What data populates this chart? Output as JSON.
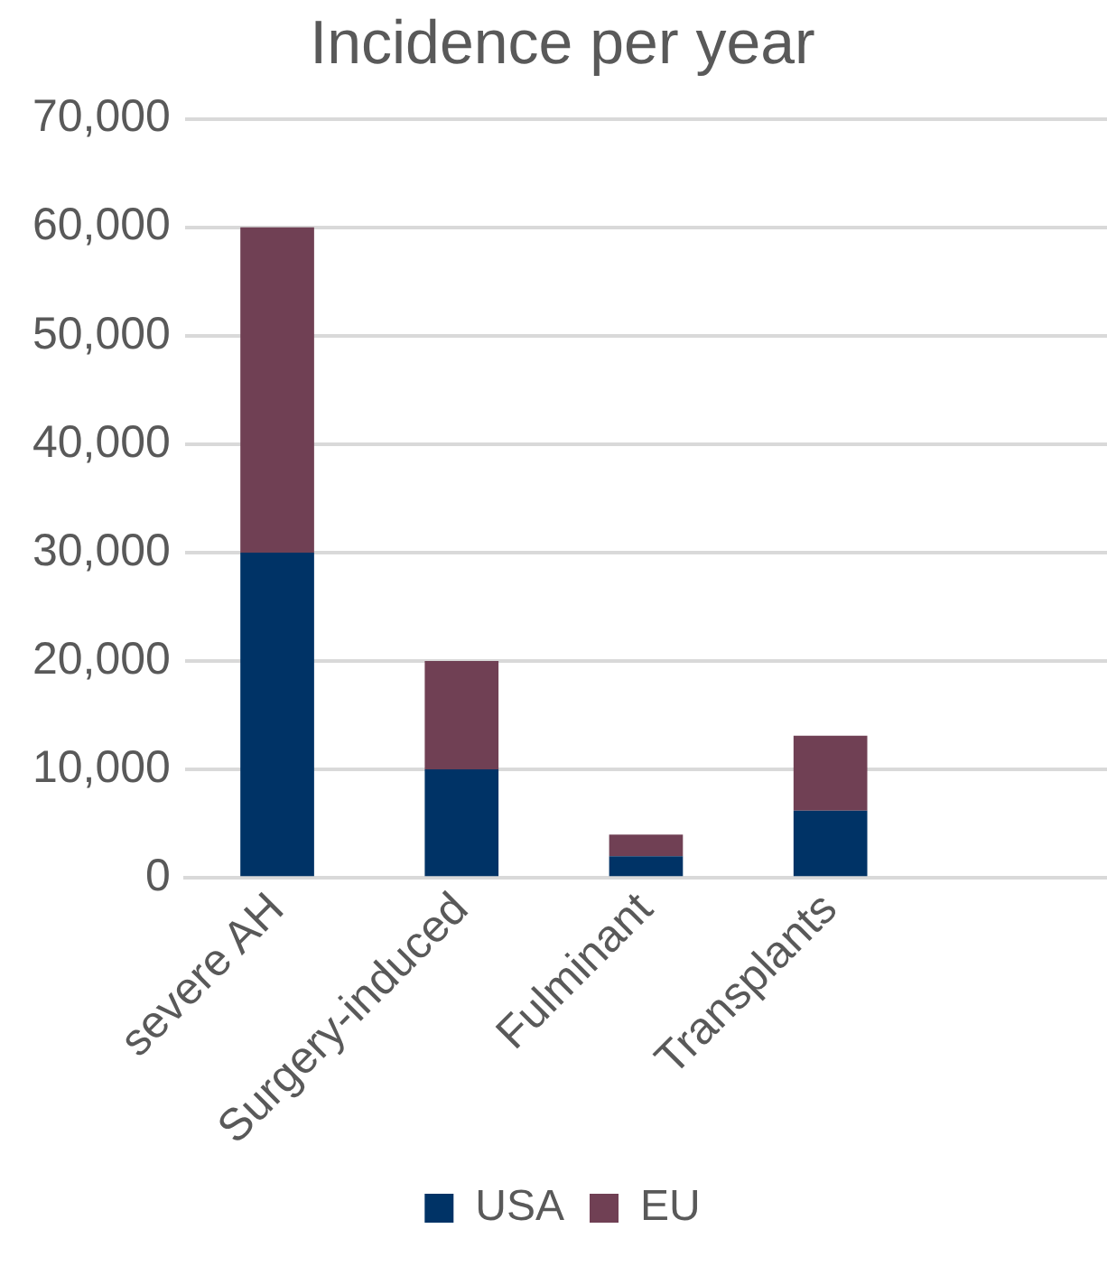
{
  "chart_data": {
    "type": "bar",
    "title": "Incidence per year",
    "categories": [
      "severe AH",
      "Surgery-induced",
      "Fulminant",
      "Transplants",
      null
    ],
    "stacked": true,
    "series": [
      {
        "name": "USA",
        "color": "#003366",
        "values": [
          30000,
          10000,
          2000,
          6200,
          null
        ]
      },
      {
        "name": "EU",
        "color": "#704054",
        "values": [
          30000,
          10000,
          2000,
          6900,
          null
        ]
      }
    ],
    "ylim": [
      0,
      70000
    ],
    "yticks": [
      0,
      {
        "value": 10000,
        "label": "10,000"
      },
      {
        "value": 20000,
        "label": "20,000"
      },
      {
        "value": 30000,
        "label": "30,000"
      },
      {
        "value": 40000,
        "label": "40,000"
      },
      {
        "value": 50000,
        "label": "50,000"
      },
      {
        "value": 60000,
        "label": "60,000"
      },
      {
        "value": 70000,
        "label": "70,000"
      }
    ],
    "grid": "y",
    "legend": "bottom"
  }
}
